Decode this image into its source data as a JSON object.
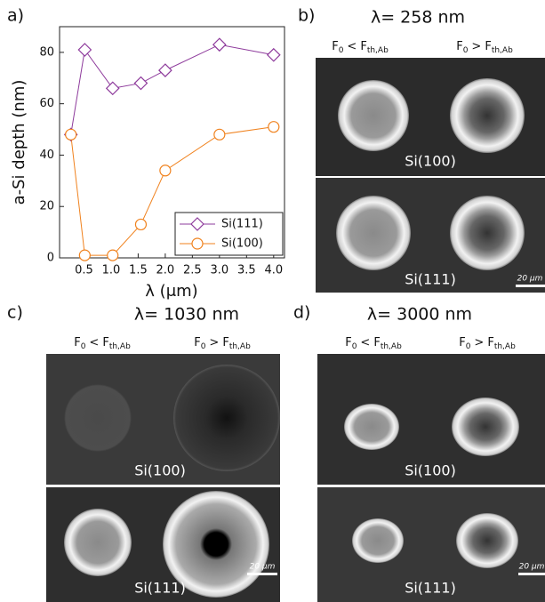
{
  "chart_data": {
    "type": "line",
    "label": "a)",
    "x_label": "λ (μm)",
    "y_label": "a-Si depth (nm)",
    "x": [
      0.258,
      0.515,
      1.03,
      1.55,
      2.0,
      3.0,
      4.0
    ],
    "series": [
      {
        "name": "Si(111)",
        "color": "#8e3b9c",
        "marker": "diamond",
        "values": [
          48,
          81,
          66,
          68,
          73,
          83,
          79
        ]
      },
      {
        "name": "Si(100)",
        "color": "#f0821e",
        "marker": "circle",
        "values": [
          48,
          1,
          1,
          13,
          34,
          48,
          51
        ]
      }
    ],
    "xlim": [
      0.05,
      4.2
    ],
    "xticks": [
      0.5,
      {
        "value": 1,
        "label": "1.0"
      },
      1.5,
      {
        "value": 2,
        "label": "2.0"
      },
      2.5,
      {
        "value": 3,
        "label": "3.0"
      },
      3.5,
      {
        "value": 4,
        "label": "4.0"
      }
    ],
    "ylim": [
      0,
      90
    ],
    "yticks": [
      0,
      20,
      40,
      60,
      80
    ],
    "grid": false,
    "legend": "lower right"
  },
  "column_headers": [
    {
      "lhs": "F",
      "lhs_sub": "0",
      "rel": "<",
      "rhs": "F",
      "rhs_sub": "th,Ab"
    },
    {
      "lhs": "F",
      "lhs_sub": "0",
      "rel": ">",
      "rhs": "F",
      "rhs_sub": "th,Ab"
    }
  ],
  "panels": [
    {
      "label": "b)",
      "title": "λ= 258 nm",
      "samples": [
        "Si(100)",
        "Si(111)"
      ],
      "scale_bar": "20 μm"
    },
    {
      "label": "c)",
      "title": "λ= 1030 nm",
      "samples": [
        "Si(100)",
        "Si(111)"
      ],
      "scale_bar": "20 μm"
    },
    {
      "label": "d)",
      "title": "λ= 3000 nm",
      "samples": [
        "Si(100)",
        "Si(111)"
      ],
      "scale_bar": "20 μm"
    }
  ]
}
